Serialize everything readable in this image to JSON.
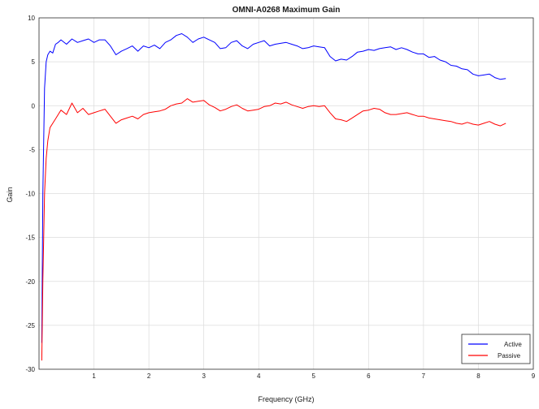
{
  "chart_data": {
    "type": "line",
    "title": "OMNI-A0268 Maximum Gain",
    "xlabel": "Frequency (GHz)",
    "ylabel": "Gain",
    "xlim": [
      0,
      9
    ],
    "ylim": [
      -30,
      10
    ],
    "xticks": [
      "1",
      "2",
      "3",
      "4",
      "5",
      "6",
      "7",
      "8",
      "9"
    ],
    "yticks": [
      "10",
      "5",
      "0",
      "-5",
      "-10",
      "-15",
      "-20",
      "-25",
      "-30"
    ],
    "grid": true,
    "legend_position": "bottom-right",
    "series": [
      {
        "name": "Active",
        "color": "#0000ff",
        "x": [
          0.05,
          0.07,
          0.1,
          0.13,
          0.16,
          0.2,
          0.25,
          0.3,
          0.35,
          0.4,
          0.5,
          0.6,
          0.7,
          0.8,
          0.9,
          1.0,
          1.1,
          1.2,
          1.3,
          1.4,
          1.5,
          1.6,
          1.7,
          1.8,
          1.9,
          2.0,
          2.1,
          2.2,
          2.3,
          2.4,
          2.5,
          2.6,
          2.7,
          2.8,
          2.9,
          3.0,
          3.1,
          3.2,
          3.3,
          3.4,
          3.5,
          3.6,
          3.7,
          3.8,
          3.9,
          4.0,
          4.1,
          4.2,
          4.3,
          4.4,
          4.5,
          4.6,
          4.7,
          4.8,
          4.9,
          5.0,
          5.1,
          5.2,
          5.3,
          5.4,
          5.5,
          5.6,
          5.7,
          5.8,
          5.9,
          6.0,
          6.1,
          6.2,
          6.3,
          6.4,
          6.5,
          6.6,
          6.7,
          6.8,
          6.9,
          7.0,
          7.1,
          7.2,
          7.3,
          7.4,
          7.5,
          7.6,
          7.7,
          7.8,
          7.9,
          8.0,
          8.1,
          8.2,
          8.3,
          8.4,
          8.5
        ],
        "values": [
          -27,
          -10,
          2,
          5,
          5.8,
          6.2,
          6,
          7,
          7.2,
          7.5,
          7,
          7.6,
          7.2,
          7.4,
          7.6,
          7.2,
          7.5,
          7.5,
          6.8,
          5.8,
          6.2,
          6.5,
          6.8,
          6.2,
          6.8,
          6.6,
          6.9,
          6.5,
          7.2,
          7.5,
          8,
          8.2,
          7.8,
          7.2,
          7.6,
          7.8,
          7.5,
          7.2,
          6.5,
          6.6,
          7.2,
          7.4,
          6.8,
          6.5,
          7,
          7.2,
          7.4,
          6.8,
          7,
          7.1,
          7.2,
          7,
          6.8,
          6.5,
          6.6,
          6.8,
          6.7,
          6.6,
          5.6,
          5.1,
          5.3,
          5.2,
          5.6,
          6.1,
          6.2,
          6.4,
          6.3,
          6.5,
          6.6,
          6.7,
          6.4,
          6.6,
          6.4,
          6.1,
          5.9,
          5.9,
          5.5,
          5.6,
          5.2,
          5,
          4.6,
          4.5,
          4.2,
          4.1,
          3.6,
          3.4,
          3.5,
          3.6,
          3.2,
          3,
          3.1
        ]
      },
      {
        "name": "Passive",
        "color": "#ff0000",
        "x": [
          0.05,
          0.07,
          0.1,
          0.13,
          0.16,
          0.2,
          0.25,
          0.3,
          0.35,
          0.4,
          0.5,
          0.6,
          0.7,
          0.8,
          0.9,
          1.0,
          1.1,
          1.2,
          1.3,
          1.4,
          1.5,
          1.6,
          1.7,
          1.8,
          1.9,
          2.0,
          2.1,
          2.2,
          2.3,
          2.4,
          2.5,
          2.6,
          2.7,
          2.8,
          2.9,
          3.0,
          3.1,
          3.2,
          3.3,
          3.4,
          3.5,
          3.6,
          3.7,
          3.8,
          3.9,
          4.0,
          4.1,
          4.2,
          4.3,
          4.4,
          4.5,
          4.6,
          4.7,
          4.8,
          4.9,
          5.0,
          5.1,
          5.2,
          5.3,
          5.4,
          5.5,
          5.6,
          5.7,
          5.8,
          5.9,
          6.0,
          6.1,
          6.2,
          6.3,
          6.4,
          6.5,
          6.6,
          6.7,
          6.8,
          6.9,
          7.0,
          7.1,
          7.2,
          7.3,
          7.4,
          7.5,
          7.6,
          7.7,
          7.8,
          7.9,
          8.0,
          8.1,
          8.2,
          8.3,
          8.4,
          8.5
        ],
        "values": [
          -29,
          -20,
          -10,
          -6,
          -4,
          -2.5,
          -2,
          -1.5,
          -1,
          -0.5,
          -1,
          0.3,
          -0.8,
          -0.3,
          -1,
          -0.8,
          -0.6,
          -0.4,
          -1.2,
          -2,
          -1.6,
          -1.4,
          -1.2,
          -1.5,
          -1,
          -0.8,
          -0.7,
          -0.6,
          -0.4,
          0,
          0.2,
          0.3,
          0.8,
          0.4,
          0.5,
          0.6,
          0.1,
          -0.2,
          -0.6,
          -0.4,
          -0.1,
          0.1,
          -0.3,
          -0.6,
          -0.5,
          -0.4,
          -0.1,
          0,
          0.3,
          0.2,
          0.4,
          0.1,
          -0.1,
          -0.3,
          -0.1,
          0,
          -0.1,
          0,
          -0.8,
          -1.5,
          -1.6,
          -1.8,
          -1.4,
          -1,
          -0.6,
          -0.5,
          -0.3,
          -0.4,
          -0.8,
          -1,
          -1,
          -0.9,
          -0.8,
          -1,
          -1.2,
          -1.2,
          -1.4,
          -1.5,
          -1.6,
          -1.7,
          -1.8,
          -2,
          -2.1,
          -1.9,
          -2.1,
          -2.2,
          -2,
          -1.8,
          -2.1,
          -2.3,
          -2
        ]
      }
    ]
  }
}
